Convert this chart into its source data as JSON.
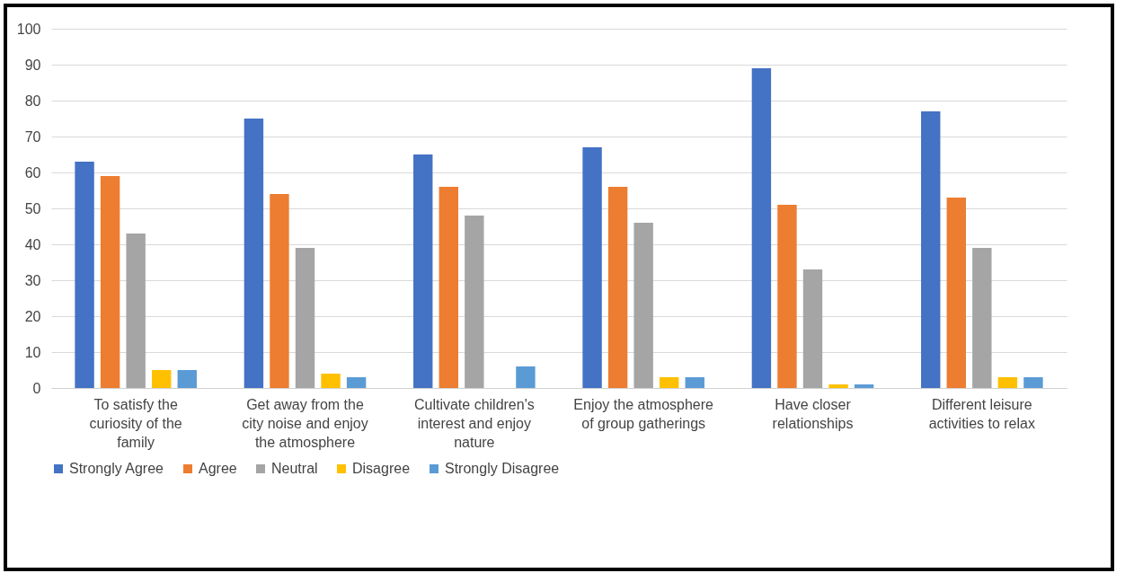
{
  "chart_data": {
    "type": "bar",
    "categories": [
      "To satisfy the curiosity of the family",
      "Get away from the city noise and enjoy the atmosphere",
      "Cultivate children's interest and enjoy nature",
      "Enjoy the atmosphere of group gatherings",
      "Have closer relationships",
      "Different leisure activities to relax"
    ],
    "series": [
      {
        "name": "Strongly Agree",
        "color": "#4472c4",
        "values": [
          63,
          75,
          65,
          67,
          89,
          77
        ]
      },
      {
        "name": "Agree",
        "color": "#ed7d31",
        "values": [
          59,
          54,
          56,
          56,
          51,
          53
        ]
      },
      {
        "name": "Neutral",
        "color": "#a5a5a5",
        "values": [
          43,
          39,
          48,
          46,
          33,
          39
        ]
      },
      {
        "name": "Disagree",
        "color": "#ffc000",
        "values": [
          5,
          4,
          0,
          3,
          1,
          3
        ]
      },
      {
        "name": "Strongly Disagree",
        "color": "#5b9bd5",
        "values": [
          5,
          3,
          6,
          3,
          1,
          3
        ]
      }
    ],
    "ylim": [
      0,
      100
    ],
    "yticks": [
      0,
      10,
      20,
      30,
      40,
      50,
      60,
      70,
      80,
      90,
      100
    ],
    "grid": "y",
    "legend": "bottom"
  }
}
